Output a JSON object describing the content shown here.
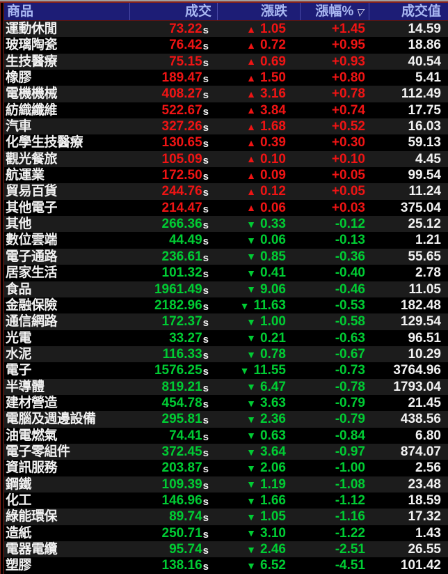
{
  "colors": {
    "up_red": "#ef1414",
    "down_green": "#00cc33",
    "header_bg": "#1d1d76",
    "header_text": "#a9b8f2",
    "row_alt_gray": "#1c1c1c",
    "row_black": "#000000",
    "frame_accent_maroon": "#8a241a"
  },
  "icons": {
    "up": "▲",
    "down": "▼",
    "sort_desc": "▽"
  },
  "header": {
    "columns": [
      {
        "label": "商品"
      },
      {
        "label": "成交"
      },
      {
        "label": "漲跌"
      },
      {
        "label": "漲幅%",
        "sorted": "desc"
      },
      {
        "label": "成交值"
      }
    ]
  },
  "rows": [
    {
      "name": "運動休閒",
      "price": "73.22",
      "suffix": "s",
      "dir": "up",
      "change": "1.05",
      "pct": "+1.45",
      "vol": "14.59"
    },
    {
      "name": "玻璃陶瓷",
      "price": "76.42",
      "suffix": "s",
      "dir": "up",
      "change": "0.72",
      "pct": "+0.95",
      "vol": "18.86"
    },
    {
      "name": "生技醫療",
      "price": "75.15",
      "suffix": "s",
      "dir": "up",
      "change": "0.69",
      "pct": "+0.93",
      "vol": "40.54"
    },
    {
      "name": "橡膠",
      "price": "189.47",
      "suffix": "s",
      "dir": "up",
      "change": "1.50",
      "pct": "+0.80",
      "vol": "5.41"
    },
    {
      "name": "電機機械",
      "price": "408.27",
      "suffix": "s",
      "dir": "up",
      "change": "3.16",
      "pct": "+0.78",
      "vol": "112.49"
    },
    {
      "name": "紡織纖維",
      "price": "522.67",
      "suffix": "s",
      "dir": "up",
      "change": "3.84",
      "pct": "+0.74",
      "vol": "17.75"
    },
    {
      "name": "汽車",
      "price": "327.26",
      "suffix": "s",
      "dir": "up",
      "change": "1.68",
      "pct": "+0.52",
      "vol": "16.03"
    },
    {
      "name": "化學生技醫療",
      "price": "130.65",
      "suffix": "s",
      "dir": "up",
      "change": "0.39",
      "pct": "+0.30",
      "vol": "59.13"
    },
    {
      "name": "觀光餐旅",
      "price": "105.09",
      "suffix": "s",
      "dir": "up",
      "change": "0.10",
      "pct": "+0.10",
      "vol": "4.45"
    },
    {
      "name": "航運業",
      "price": "172.50",
      "suffix": "s",
      "dir": "up",
      "change": "0.09",
      "pct": "+0.05",
      "vol": "99.54"
    },
    {
      "name": "貿易百貨",
      "price": "244.76",
      "suffix": "s",
      "dir": "up",
      "change": "0.12",
      "pct": "+0.05",
      "vol": "11.24"
    },
    {
      "name": "其他電子",
      "price": "214.47",
      "suffix": "s",
      "dir": "up",
      "change": "0.06",
      "pct": "+0.03",
      "vol": "375.04"
    },
    {
      "name": "其他",
      "price": "266.36",
      "suffix": "s",
      "dir": "down",
      "change": "0.33",
      "pct": "-0.12",
      "vol": "25.12"
    },
    {
      "name": "數位雲端",
      "price": "44.49",
      "suffix": "s",
      "dir": "down",
      "change": "0.06",
      "pct": "-0.13",
      "vol": "1.21"
    },
    {
      "name": "電子通路",
      "price": "236.61",
      "suffix": "s",
      "dir": "down",
      "change": "0.85",
      "pct": "-0.36",
      "vol": "55.65"
    },
    {
      "name": "居家生活",
      "price": "101.32",
      "suffix": "s",
      "dir": "down",
      "change": "0.41",
      "pct": "-0.40",
      "vol": "2.78"
    },
    {
      "name": "食品",
      "price": "1961.49",
      "suffix": "s",
      "dir": "down",
      "change": "9.06",
      "pct": "-0.46",
      "vol": "11.05"
    },
    {
      "name": "金融保險",
      "price": "2182.96",
      "suffix": "s",
      "dir": "down",
      "change": "11.63",
      "pct": "-0.53",
      "vol": "182.48"
    },
    {
      "name": "通信網路",
      "price": "172.37",
      "suffix": "s",
      "dir": "down",
      "change": "1.00",
      "pct": "-0.58",
      "vol": "129.54"
    },
    {
      "name": "光電",
      "price": "33.27",
      "suffix": "s",
      "dir": "down",
      "change": "0.21",
      "pct": "-0.63",
      "vol": "96.51"
    },
    {
      "name": "水泥",
      "price": "116.33",
      "suffix": "s",
      "dir": "down",
      "change": "0.78",
      "pct": "-0.67",
      "vol": "10.29"
    },
    {
      "name": "電子",
      "price": "1576.25",
      "suffix": "s",
      "dir": "down",
      "change": "11.55",
      "pct": "-0.73",
      "vol": "3764.96"
    },
    {
      "name": "半導體",
      "price": "819.21",
      "suffix": "s",
      "dir": "down",
      "change": "6.47",
      "pct": "-0.78",
      "vol": "1793.04"
    },
    {
      "name": "建材營造",
      "price": "454.78",
      "suffix": "s",
      "dir": "down",
      "change": "3.63",
      "pct": "-0.79",
      "vol": "21.45"
    },
    {
      "name": "電腦及週邊設備",
      "price": "295.81",
      "suffix": "s",
      "dir": "down",
      "change": "2.36",
      "pct": "-0.79",
      "vol": "438.56"
    },
    {
      "name": "油電燃氣",
      "price": "74.41",
      "suffix": "s",
      "dir": "down",
      "change": "0.63",
      "pct": "-0.84",
      "vol": "6.80"
    },
    {
      "name": "電子零組件",
      "price": "372.45",
      "suffix": "s",
      "dir": "down",
      "change": "3.64",
      "pct": "-0.97",
      "vol": "874.07"
    },
    {
      "name": "資訊服務",
      "price": "203.87",
      "suffix": "s",
      "dir": "down",
      "change": "2.06",
      "pct": "-1.00",
      "vol": "2.56"
    },
    {
      "name": "鋼鐵",
      "price": "109.39",
      "suffix": "s",
      "dir": "down",
      "change": "1.19",
      "pct": "-1.08",
      "vol": "23.48"
    },
    {
      "name": "化工",
      "price": "146.96",
      "suffix": "s",
      "dir": "down",
      "change": "1.66",
      "pct": "-1.12",
      "vol": "18.59"
    },
    {
      "name": "綠能環保",
      "price": "89.74",
      "suffix": "s",
      "dir": "down",
      "change": "1.05",
      "pct": "-1.16",
      "vol": "17.32"
    },
    {
      "name": "造紙",
      "price": "250.71",
      "suffix": "s",
      "dir": "down",
      "change": "3.10",
      "pct": "-1.22",
      "vol": "1.43"
    },
    {
      "name": "電器電纜",
      "price": "95.74",
      "suffix": "s",
      "dir": "down",
      "change": "2.46",
      "pct": "-2.51",
      "vol": "26.55"
    },
    {
      "name": "塑膠",
      "price": "138.16",
      "suffix": "s",
      "dir": "down",
      "change": "6.52",
      "pct": "-4.51",
      "vol": "101.42"
    }
  ]
}
